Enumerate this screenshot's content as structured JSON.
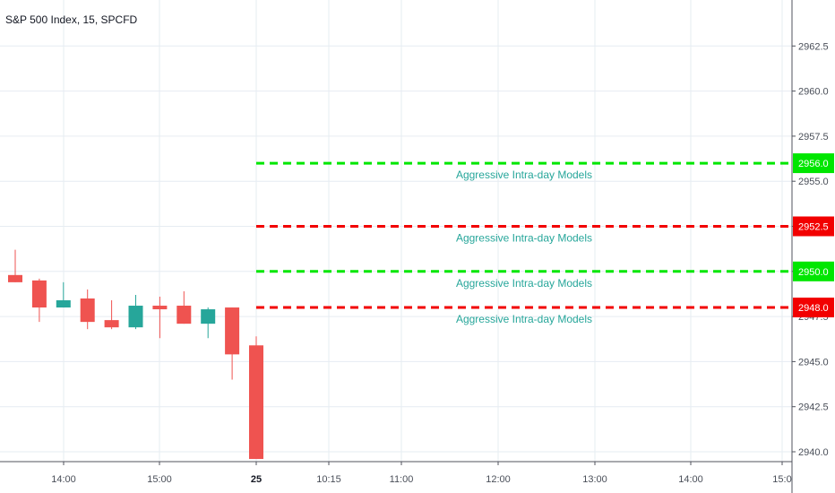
{
  "header": {
    "title": "S&P 500 Index, 15, SPCFD"
  },
  "chart_data": {
    "type": "candlestick",
    "title": "S&P 500 Index, 15, SPCFD",
    "ylim": [
      2939.5,
      2965
    ],
    "y_ticks": [
      "2940.0",
      "2942.5",
      "2945.0",
      "2947.5",
      "2950.0",
      "2952.5",
      "2955.0",
      "2957.5",
      "2960.0",
      "2962.5"
    ],
    "x_ticks": [
      {
        "label": "14:00",
        "bold": false
      },
      {
        "label": "15:00",
        "bold": false
      },
      {
        "label": "25",
        "bold": true
      },
      {
        "label": "10:15",
        "bold": false
      },
      {
        "label": "11:00",
        "bold": false
      },
      {
        "label": "12:00",
        "bold": false
      },
      {
        "label": "13:00",
        "bold": false
      },
      {
        "label": "14:00",
        "bold": false
      },
      {
        "label": "15:0",
        "bold": false
      }
    ],
    "candles": [
      {
        "open": 2949.8,
        "close": 2949.4,
        "high": 2951.2,
        "low": 2949.4
      },
      {
        "open": 2949.5,
        "close": 2948.0,
        "high": 2949.6,
        "low": 2947.2
      },
      {
        "open": 2948.0,
        "close": 2948.4,
        "high": 2949.4,
        "low": 2948.0
      },
      {
        "open": 2948.5,
        "close": 2947.2,
        "high": 2949.0,
        "low": 2946.8
      },
      {
        "open": 2947.3,
        "close": 2946.9,
        "high": 2948.4,
        "low": 2946.8
      },
      {
        "open": 2946.9,
        "close": 2948.1,
        "high": 2948.7,
        "low": 2946.8
      },
      {
        "open": 2948.1,
        "close": 2947.9,
        "high": 2948.6,
        "low": 2946.3
      },
      {
        "open": 2948.1,
        "close": 2947.1,
        "high": 2948.9,
        "low": 2947.1
      },
      {
        "open": 2947.1,
        "close": 2947.9,
        "high": 2948.0,
        "low": 2946.3
      },
      {
        "open": 2948.0,
        "close": 2945.4,
        "high": 2948.0,
        "low": 2944.0
      },
      {
        "open": 2945.9,
        "close": 2939.6,
        "high": 2946.4,
        "low": 2939.6
      }
    ],
    "levels": [
      {
        "value": 2956.0,
        "label": "2956.0",
        "color": "#00e600",
        "text": "Aggressive Intra-day Models"
      },
      {
        "value": 2952.5,
        "label": "2952.5",
        "color": "#f20000",
        "text": "Aggressive Intra-day Models"
      },
      {
        "value": 2950.0,
        "label": "2950.0",
        "color": "#00e600",
        "text": "Aggressive Intra-day Models"
      },
      {
        "value": 2948.0,
        "label": "2948.0",
        "color": "#f20000",
        "text": "Aggressive Intra-day Models"
      }
    ],
    "up_color": "#26a69a",
    "down_color": "#ef5350",
    "level_text_color": "#26a69a"
  }
}
